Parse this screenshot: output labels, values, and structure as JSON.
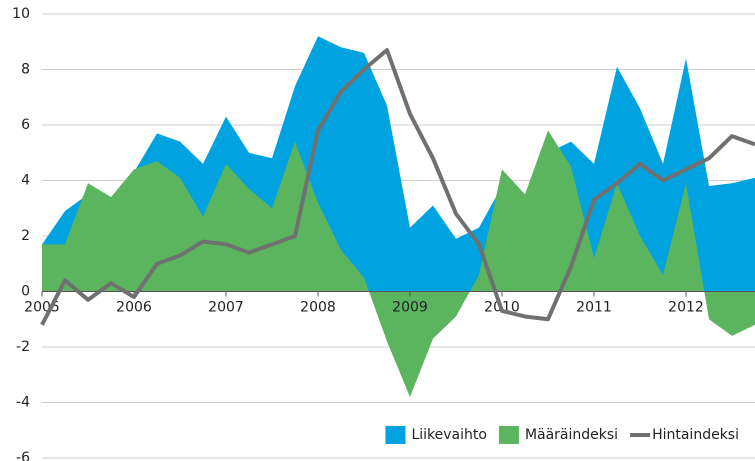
{
  "chart_data": {
    "type": "area",
    "x": [
      2005,
      2005.25,
      2005.5,
      2005.75,
      2006,
      2006.25,
      2006.5,
      2006.75,
      2007,
      2007.25,
      2007.5,
      2007.75,
      2008,
      2008.25,
      2008.5,
      2008.75,
      2009,
      2009.25,
      2009.5,
      2009.75,
      2010,
      2010.25,
      2010.5,
      2010.75,
      2011,
      2011.25,
      2011.5,
      2011.75,
      2012,
      2012.25,
      2012.5,
      2012.75
    ],
    "series": [
      {
        "name": "Liikevaihto",
        "type": "area",
        "color": "#00a3e0",
        "values": [
          1.7,
          2.9,
          3.5,
          3.3,
          4.3,
          5.7,
          5.4,
          4.6,
          6.3,
          5.0,
          4.8,
          7.4,
          9.2,
          8.8,
          8.6,
          6.7,
          2.3,
          3.1,
          1.9,
          2.3,
          3.8,
          3.5,
          5.0,
          5.4,
          4.6,
          8.1,
          6.6,
          4.6,
          8.4,
          3.8,
          3.9,
          4.1
        ]
      },
      {
        "name": "Määräindeksi",
        "type": "area",
        "color": "#5ab55e",
        "values": [
          1.7,
          1.7,
          3.9,
          3.4,
          4.4,
          4.7,
          4.1,
          2.7,
          4.6,
          3.7,
          3.0,
          5.4,
          3.2,
          1.5,
          0.5,
          -1.8,
          -3.8,
          -1.7,
          -0.9,
          0.6,
          4.4,
          3.5,
          5.8,
          4.5,
          1.2,
          3.9,
          2.0,
          0.6,
          3.9,
          -1.0,
          -1.6,
          -1.2
        ]
      },
      {
        "name": "Hintaindeksi",
        "type": "line",
        "color": "#707070",
        "values": [
          -1.2,
          0.4,
          -0.3,
          0.3,
          -0.2,
          1.0,
          1.3,
          1.8,
          1.7,
          1.4,
          1.7,
          2.0,
          5.8,
          7.2,
          8.0,
          8.7,
          6.4,
          4.8,
          2.8,
          1.7,
          -0.7,
          -0.9,
          -1.0,
          0.9,
          3.3,
          3.9,
          4.6,
          4.0,
          4.4,
          4.8,
          5.6,
          5.3
        ]
      }
    ],
    "xlim": [
      2005,
      2012.75
    ],
    "xticks": [
      2005,
      2006,
      2007,
      2008,
      2009,
      2010,
      2011,
      2012
    ],
    "ylim": [
      -6,
      10
    ],
    "yticks": [
      -6,
      -4,
      -2,
      0,
      2,
      4,
      6,
      8,
      10
    ],
    "grid": true,
    "legend": "lower right"
  }
}
